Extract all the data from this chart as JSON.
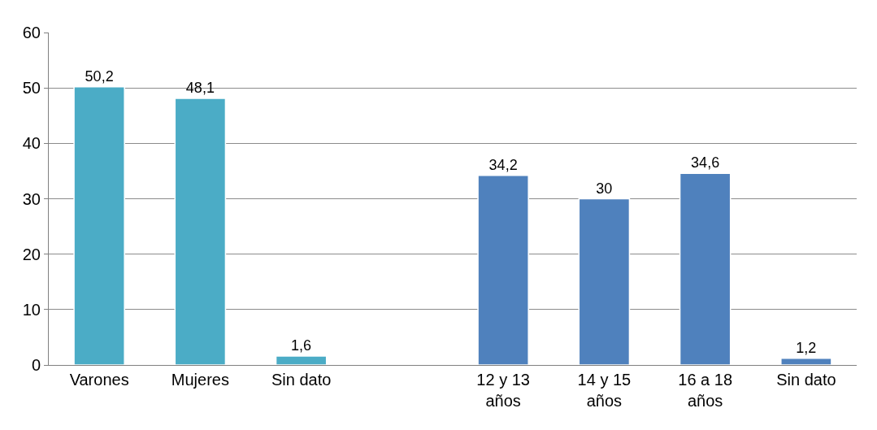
{
  "chart_data": {
    "type": "bar",
    "categories": [
      "Varones",
      "Mujeres",
      "Sin dato",
      null,
      "12 y 13\naños",
      "14 y 15\naños",
      "16 a 18\naños",
      "Sin dato"
    ],
    "values": [
      50.2,
      48.1,
      1.6,
      null,
      34.2,
      30,
      34.6,
      1.2
    ],
    "colors": [
      "#4bacc6",
      "#4bacc6",
      "#4bacc6",
      "#4bacc6",
      "#4f81bd",
      "#4f81bd",
      "#4f81bd",
      "#4f81bd"
    ],
    "value_labels": [
      "50,2",
      "48,1",
      "1,6",
      null,
      "34,2",
      "30",
      "34,6",
      "1,2"
    ],
    "ylim": [
      0,
      60
    ],
    "yticks": [
      0,
      10,
      20,
      30,
      40,
      50,
      60
    ],
    "grid": "y"
  }
}
